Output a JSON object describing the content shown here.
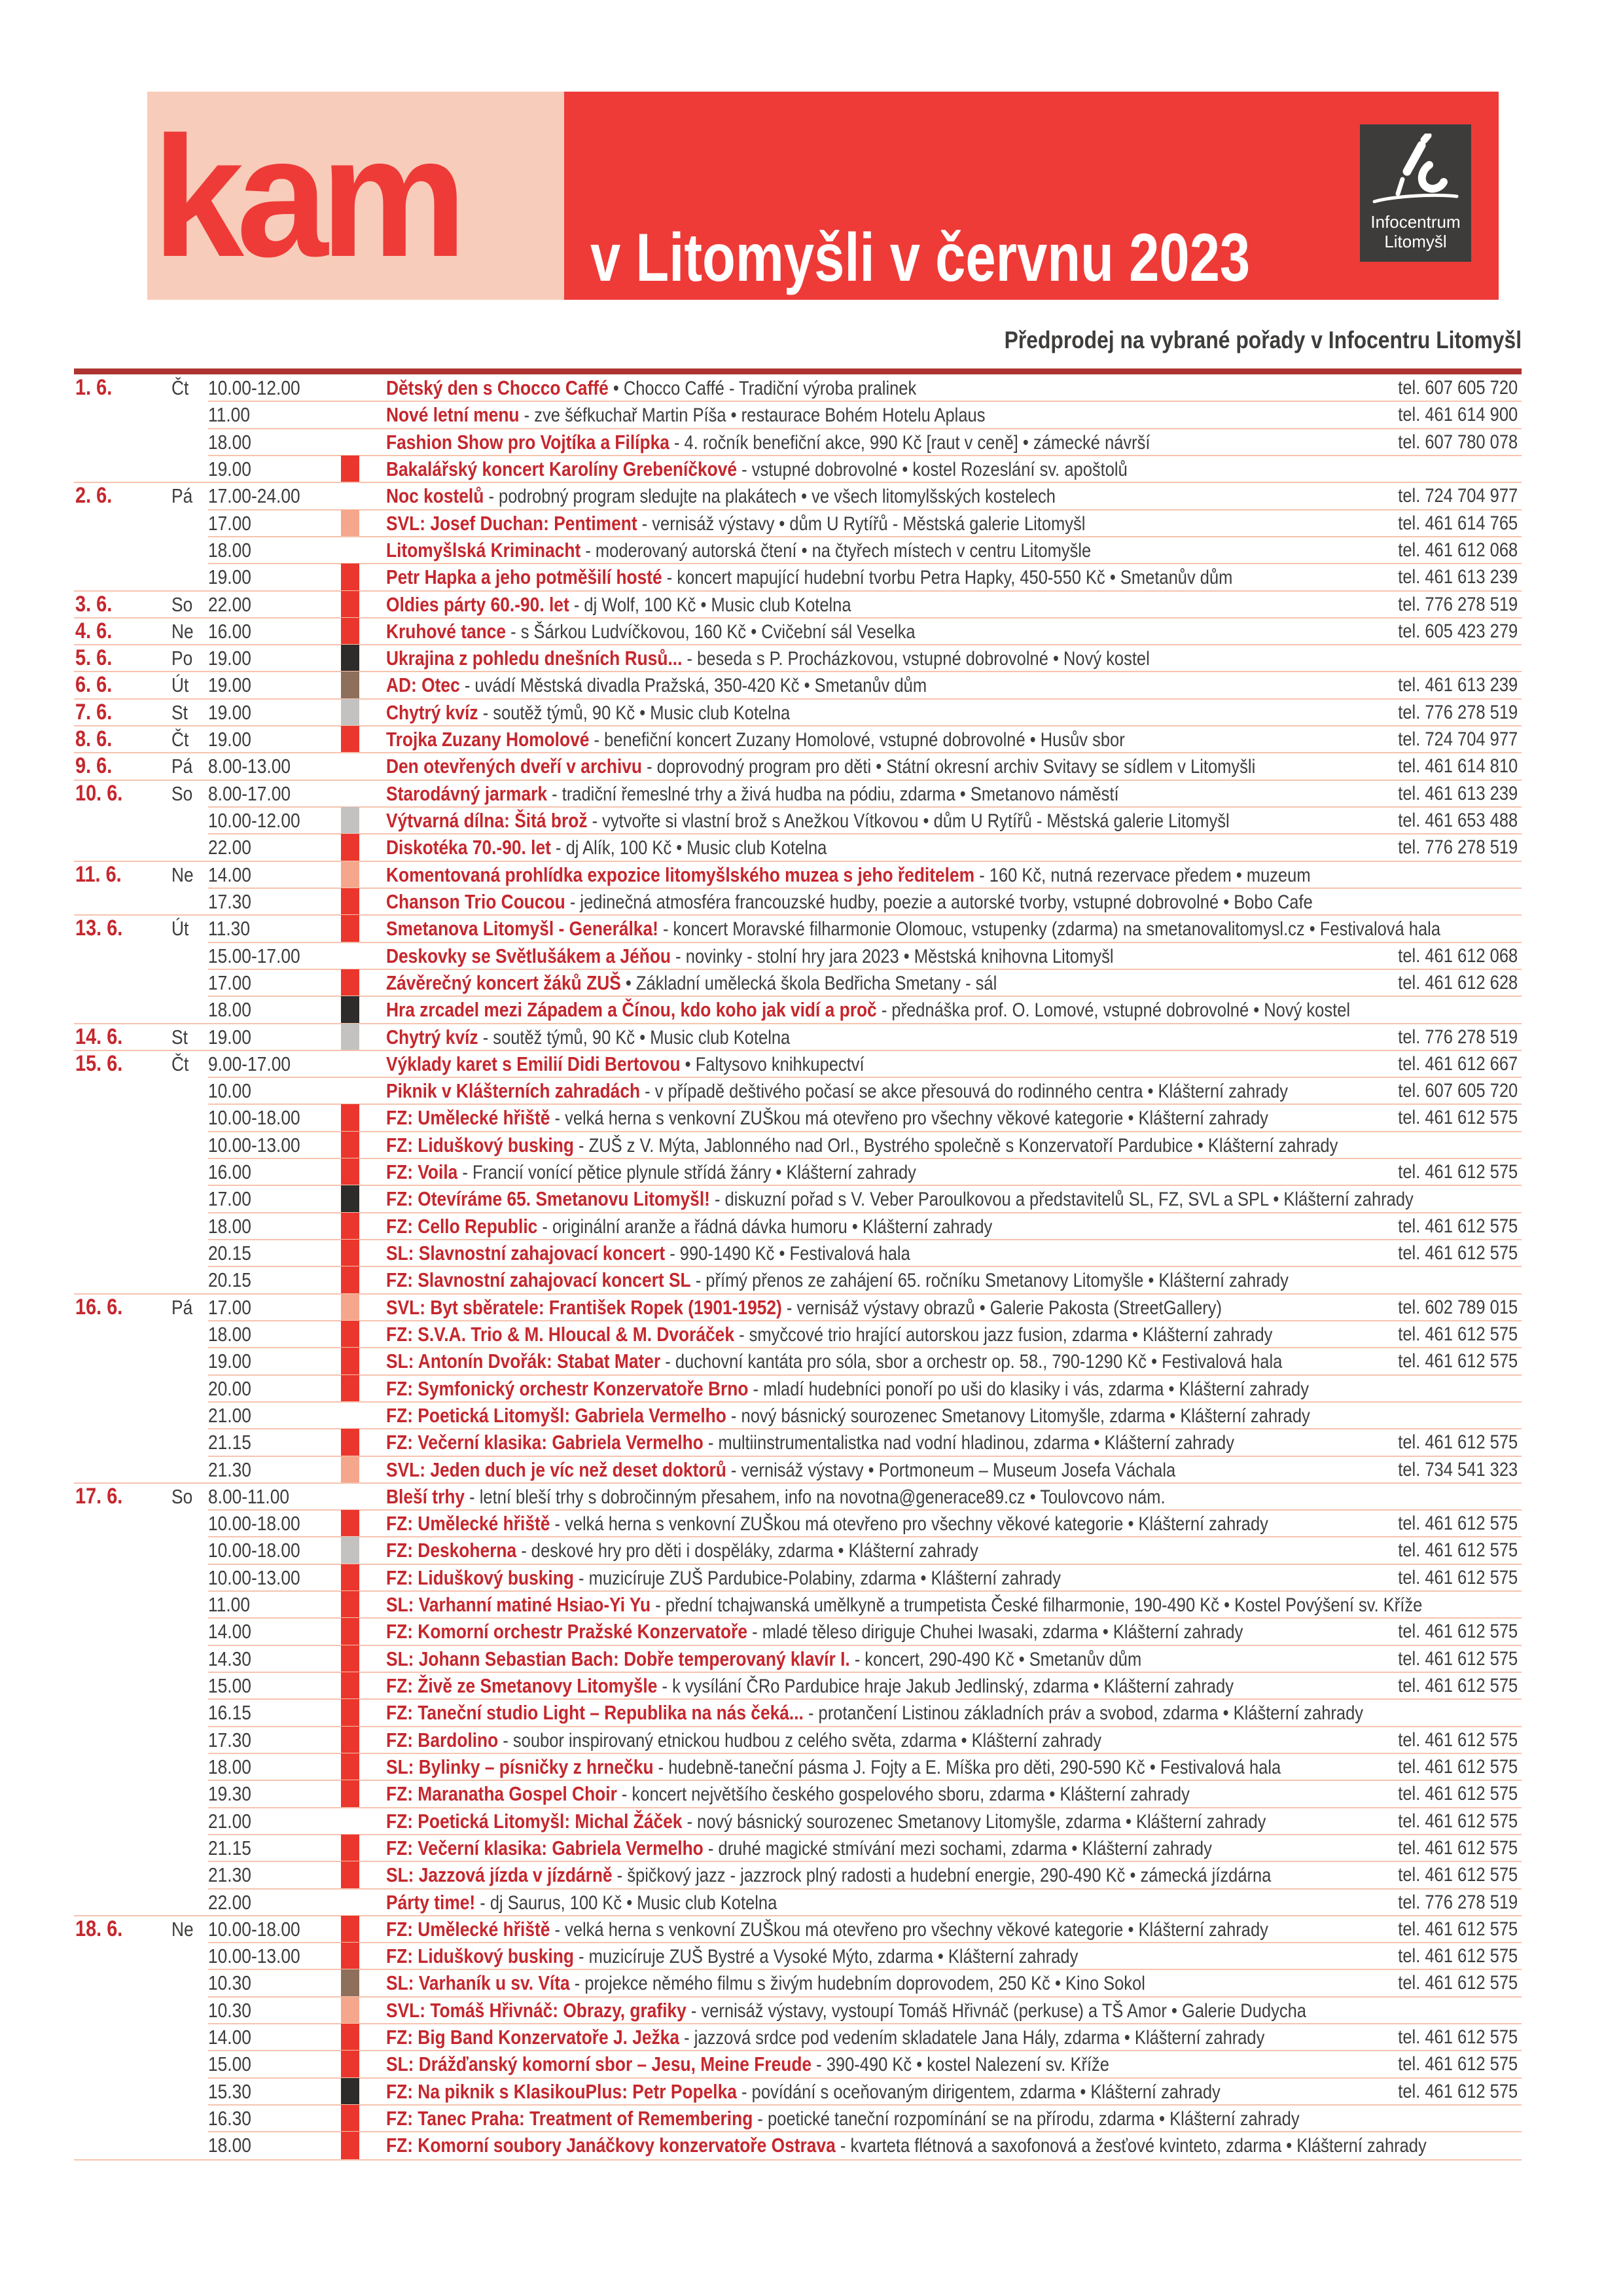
{
  "header": {
    "logo": "kam",
    "title": "v Litomyšli v červnu 2023",
    "badge": {
      "line1": "Infocentrum",
      "line2": "Litomyšl"
    }
  },
  "presale_note": "Předprodej na vybrané pořady v Infocentru Litomyšl",
  "colors": {
    "brand_red": "#ee3b38",
    "panel_pink": "#f8ccba",
    "bar_dark_red": "#ad3430",
    "title_red": "#c5272d",
    "text_dark": "#3e3d3c",
    "separator": "#f6c3ae",
    "badge_bg": "#3e3c3b",
    "marker_red": "#eb362d",
    "marker_salmon": "#f4a78c",
    "marker_black": "#2e2c2b",
    "marker_brown": "#8d6f5c",
    "marker_gray": "#c3c2c1"
  },
  "events": [
    {
      "date": "1. 6.",
      "day": "Čt",
      "rows": [
        {
          "time": "10.00-12.00",
          "marker": null,
          "title": "Dětský den s Chocco Caffé",
          "desc": "• Chocco Caffé - Tradiční výroba pralinek",
          "phone": "tel. 607 605 720"
        },
        {
          "time": "11.00",
          "marker": null,
          "title": "Nové letní menu",
          "desc": "- zve šéfkuchař Martin Píša • restaurace Bohém Hotelu Aplaus",
          "phone": "tel. 461 614 900"
        },
        {
          "time": "18.00",
          "marker": null,
          "title": "Fashion Show pro Vojtíka a Filípka",
          "desc": "- 4. ročník benefiční akce, 990 Kč [raut v ceně] • zámecké návrší",
          "phone": "tel. 607 780 078"
        },
        {
          "time": "19.00",
          "marker": "red",
          "title": "Bakalářský koncert Karolíny Grebeníčkové",
          "desc": "- vstupné dobrovolné • kostel Rozeslání sv. apoštolů",
          "phone": null
        }
      ]
    },
    {
      "date": "2. 6.",
      "day": "Pá",
      "rows": [
        {
          "time": "17.00-24.00",
          "marker": null,
          "title": "Noc kostelů",
          "desc": "- podrobný program sledujte na plakátech • ve všech litomylšských kostelech",
          "phone": "tel. 724 704 977"
        },
        {
          "time": "17.00",
          "marker": "salmon",
          "title": "SVL: Josef Duchan: Pentiment",
          "desc": "- vernisáž výstavy • dům U Rytířů - Městská galerie Litomyšl",
          "phone": "tel. 461 614 765"
        },
        {
          "time": "18.00",
          "marker": null,
          "title": "Litomyšlská Kriminacht",
          "desc": "- moderovaný autorská čtení • na čtyřech místech v centru Litomyšle",
          "phone": "tel. 461 612 068"
        },
        {
          "time": "19.00",
          "marker": "red",
          "title": "Petr Hapka a jeho potměšilí hosté",
          "desc": "- koncert mapující hudební tvorbu Petra Hapky, 450-550 Kč • Smetanův dům",
          "phone": "tel. 461 613 239"
        }
      ]
    },
    {
      "date": "3. 6.",
      "day": "So",
      "rows": [
        {
          "time": "22.00",
          "marker": "red",
          "title": "Oldies párty 60.-90. let",
          "desc": "- dj Wolf, 100 Kč • Music club Kotelna",
          "phone": "tel. 776 278 519"
        }
      ]
    },
    {
      "date": "4. 6.",
      "day": "Ne",
      "rows": [
        {
          "time": "16.00",
          "marker": "red",
          "title": "Kruhové tance",
          "desc": "- s Šárkou Ludvíčkovou, 160 Kč • Cvičební sál Veselka",
          "phone": "tel. 605 423 279"
        }
      ]
    },
    {
      "date": "5. 6.",
      "day": "Po",
      "rows": [
        {
          "time": "19.00",
          "marker": "black",
          "title": "Ukrajina z pohledu dnešních Rusů...",
          "desc": "- beseda s P. Procházkovou, vstupné dobrovolné • Nový kostel",
          "phone": null
        }
      ]
    },
    {
      "date": "6. 6.",
      "day": "Út",
      "rows": [
        {
          "time": "19.00",
          "marker": "brown",
          "title": "AD: Otec",
          "desc": "- uvádí Městská divadla Pražská, 350-420 Kč • Smetanův dům",
          "phone": "tel. 461 613 239"
        }
      ]
    },
    {
      "date": "7. 6.",
      "day": "St",
      "rows": [
        {
          "time": "19.00",
          "marker": "gray",
          "title": "Chytrý kvíz",
          "desc": "- soutěž týmů, 90 Kč • Music club Kotelna",
          "phone": "tel. 776 278 519"
        }
      ]
    },
    {
      "date": "8. 6.",
      "day": "Čt",
      "rows": [
        {
          "time": "19.00",
          "marker": "red",
          "title": "Trojka Zuzany Homolové",
          "desc": "- benefiční koncert Zuzany Homolové, vstupné dobrovolné • Husův sbor",
          "phone": "tel. 724 704 977"
        }
      ]
    },
    {
      "date": "9. 6.",
      "day": "Pá",
      "rows": [
        {
          "time": "8.00-13.00",
          "marker": null,
          "title": "Den otevřených dveří v archivu",
          "desc": "- doprovodný program pro děti • Státní okresní archiv Svitavy se sídlem v Litomyšli",
          "phone": "tel. 461 614 810"
        }
      ]
    },
    {
      "date": "10. 6.",
      "day": "So",
      "rows": [
        {
          "time": "8.00-17.00",
          "marker": null,
          "title": "Starodávný jarmark",
          "desc": "- tradiční řemeslné trhy a živá hudba na pódiu, zdarma • Smetanovo náměstí",
          "phone": "tel. 461 613 239"
        },
        {
          "time": "10.00-12.00",
          "marker": "gray",
          "title": "Výtvarná dílna: Šitá brož",
          "desc": "- vytvořte si vlastní brož s Anežkou Vítkovou • dům U Rytířů - Městská galerie Litomyšl",
          "phone": "tel. 461 653 488"
        },
        {
          "time": "22.00",
          "marker": "red",
          "title": "Diskotéka 70.-90. let",
          "desc": "- dj Alík, 100 Kč • Music club Kotelna",
          "phone": "tel. 776 278 519"
        }
      ]
    },
    {
      "date": "11. 6.",
      "day": "Ne",
      "rows": [
        {
          "time": "14.00",
          "marker": "salmon",
          "title": "Komentovaná prohlídka expozice litomyšlského muzea s jeho ředitelem",
          "desc": "- 160 Kč, nutná rezervace předem • muzeum",
          "phone": null
        },
        {
          "time": "17.30",
          "marker": "red",
          "title": "Chanson Trio Coucou",
          "desc": "- jedinečná atmosféra francouzské hudby, poezie a autorské tvorby, vstupné dobrovolné • Bobo Cafe",
          "phone": null
        }
      ]
    },
    {
      "date": "13. 6.",
      "day": "Út",
      "rows": [
        {
          "time": "11.30",
          "marker": "red",
          "title": "Smetanova Litomyšl - Generálka!",
          "desc": "- koncert Moravské filharmonie Olomouc, vstupenky (zdarma) na smetanovalitomysl.cz • Festivalová hala",
          "phone": null
        },
        {
          "time": "15.00-17.00",
          "marker": null,
          "title": "Deskovky se Světlušákem a Jéňou",
          "desc": "- novinky - stolní hry jara 2023 • Městská knihovna Litomyšl",
          "phone": "tel. 461 612 068"
        },
        {
          "time": "17.00",
          "marker": "red",
          "title": "Závěrečný koncert žáků ZUŠ",
          "desc": "• Základní umělecká škola Bedřicha Smetany - sál",
          "phone": "tel. 461 612 628"
        },
        {
          "time": "18.00",
          "marker": "black",
          "title": "Hra zrcadel mezi Západem a Čínou, kdo koho jak vidí a proč",
          "desc": "- přednáška prof. O. Lomové, vstupné dobrovolné • Nový kostel",
          "phone": null
        }
      ]
    },
    {
      "date": "14. 6.",
      "day": "St",
      "rows": [
        {
          "time": "19.00",
          "marker": "gray",
          "title": "Chytrý kvíz",
          "desc": "- soutěž týmů, 90 Kč • Music club Kotelna",
          "phone": "tel. 776 278 519"
        }
      ]
    },
    {
      "date": "15. 6.",
      "day": "Čt",
      "rows": [
        {
          "time": "9.00-17.00",
          "marker": null,
          "title": "Výklady karet s Emilií Didi Bertovou",
          "desc": "• Faltysovo knihkupectví",
          "phone": "tel. 461 612 667"
        },
        {
          "time": "10.00",
          "marker": null,
          "title": "Piknik v Klášterních zahradách",
          "desc": "- v případě deštivého počasí se akce přesouvá do rodinného centra • Klášterní zahrady",
          "phone": "tel. 607 605 720"
        },
        {
          "time": "10.00-18.00",
          "marker": "red",
          "title": "FZ: Umělecké hřiště",
          "desc": "- velká herna s venkovní ZUŠkou má otevřeno pro všechny věkové kategorie • Klášterní zahrady",
          "phone": "tel. 461 612 575"
        },
        {
          "time": "10.00-13.00",
          "marker": "red",
          "title": "FZ: Liduškový busking",
          "desc": "- ZUŠ z V. Mýta, Jablonného nad Orl., Bystrého společně s Konzervatoří Pardubice • Klášterní zahrady",
          "phone": null
        },
        {
          "time": "16.00",
          "marker": "red",
          "title": "FZ: Voila",
          "desc": "- Francií vonící pětice plynule střídá žánry • Klášterní zahrady",
          "phone": "tel. 461 612 575"
        },
        {
          "time": "17.00",
          "marker": "black",
          "title": "FZ: Otevíráme 65. Smetanovu Litomyšl!",
          "desc": "- diskuzní pořad s V. Veber Paroulkovou a představitelů SL, FZ, SVL a SPL • Klášterní zahrady",
          "phone": null
        },
        {
          "time": "18.00",
          "marker": "red",
          "title": "FZ: Cello Republic",
          "desc": "- originální aranže a řádná dávka humoru • Klášterní zahrady",
          "phone": "tel. 461 612 575"
        },
        {
          "time": "20.15",
          "marker": "red",
          "title": "SL: Slavnostní zahajovací koncert",
          "desc": "- 990-1490 Kč • Festivalová hala",
          "phone": "tel. 461 612 575"
        },
        {
          "time": "20.15",
          "marker": "red",
          "title": "FZ: Slavnostní zahajovací koncert SL",
          "desc": "- přímý přenos ze zahájení 65. ročníku Smetanovy Litomyšle • Klášterní zahrady",
          "phone": null
        }
      ]
    },
    {
      "date": "16. 6.",
      "day": "Pá",
      "rows": [
        {
          "time": "17.00",
          "marker": "salmon",
          "title": "SVL: Byt sběratele: František Ropek (1901-1952)",
          "desc": "- vernisáž výstavy obrazů • Galerie Pakosta (StreetGallery)",
          "phone": "tel. 602 789 015"
        },
        {
          "time": "18.00",
          "marker": "red",
          "title": "FZ: S.V.A. Trio & M. Hloucal & M. Dvoráček",
          "desc": "- smyčcové trio hrající autorskou jazz fusion, zdarma • Klášterní zahrady",
          "phone": "tel. 461 612 575"
        },
        {
          "time": "19.00",
          "marker": "red",
          "title": "SL: Antonín Dvořák: Stabat Mater",
          "desc": "- duchovní kantáta pro sóla, sbor a orchestr op. 58., 790-1290 Kč • Festivalová hala",
          "phone": "tel. 461 612 575"
        },
        {
          "time": "20.00",
          "marker": "red",
          "title": "FZ: Symfonický orchestr Konzervatoře Brno",
          "desc": "- mladí hudebníci ponoří po uši do klasiky i vás, zdarma • Klášterní zahrady",
          "phone": null
        },
        {
          "time": "21.00",
          "marker": null,
          "title": "FZ: Poetická Litomyšl: Gabriela Vermelho",
          "desc": "- nový básnický sourozenec Smetanovy Litomyšle, zdarma • Klášterní zahrady",
          "phone": null
        },
        {
          "time": "21.15",
          "marker": "red",
          "title": "FZ: Večerní klasika: Gabriela Vermelho",
          "desc": "- multiinstrumentalistka nad vodní hladinou, zdarma • Klášterní zahrady",
          "phone": "tel. 461 612 575"
        },
        {
          "time": "21.30",
          "marker": "salmon",
          "title": "SVL: Jeden duch je víc než deset doktorů",
          "desc": "- vernisáž výstavy • Portmoneum – Museum Josefa Váchala",
          "phone": "tel. 734 541 323"
        }
      ]
    },
    {
      "date": "17. 6.",
      "day": "So",
      "rows": [
        {
          "time": "8.00-11.00",
          "marker": null,
          "title": "Bleší trhy",
          "desc": "- letní bleší trhy s dobročinným přesahem, info na novotna@generace89.cz • Toulovcovo nám.",
          "phone": null
        },
        {
          "time": "10.00-18.00",
          "marker": "red",
          "title": "FZ: Umělecké hřiště",
          "desc": "- velká herna s venkovní ZUŠkou má otevřeno pro všechny věkové kategorie • Klášterní zahrady",
          "phone": "tel. 461 612 575"
        },
        {
          "time": "10.00-18.00",
          "marker": "gray",
          "title": "FZ: Deskoherna",
          "desc": "- deskové hry pro děti i dospěláky, zdarma • Klášterní zahrady",
          "phone": "tel. 461 612 575"
        },
        {
          "time": "10.00-13.00",
          "marker": "red",
          "title": "FZ: Liduškový busking",
          "desc": "- muzicíruje ZUŠ Pardubice-Polabiny, zdarma • Klášterní zahrady",
          "phone": "tel. 461 612 575"
        },
        {
          "time": "11.00",
          "marker": "red",
          "title": "SL: Varhanní matiné Hsiao-Yi Yu",
          "desc": "- přední tchajwanská umělkyně a trumpetista České filharmonie, 190-490 Kč • Kostel Povýšení sv. Kříže",
          "phone": null
        },
        {
          "time": "14.00",
          "marker": "red",
          "title": "FZ: Komorní orchestr Pražské Konzervatoře",
          "desc": "- mladé těleso diriguje Chuhei Iwasaki, zdarma • Klášterní zahrady",
          "phone": "tel. 461 612 575"
        },
        {
          "time": "14.30",
          "marker": "red",
          "title": "SL: Johann Sebastian Bach: Dobře temperovaný klavír I.",
          "desc": "- koncert, 290-490 Kč • Smetanův dům",
          "phone": "tel. 461 612 575"
        },
        {
          "time": "15.00",
          "marker": "red",
          "title": "FZ: Živě ze Smetanovy Litomyšle",
          "desc": "- k vysílání ČRo Pardubice hraje Jakub Jedlinský, zdarma • Klášterní zahrady",
          "phone": "tel. 461 612 575"
        },
        {
          "time": "16.15",
          "marker": "red",
          "title": "FZ: Taneční studio Light – Republika na nás čeká...",
          "desc": "- protančení Listinou základních práv a svobod, zdarma • Klášterní zahrady",
          "phone": null
        },
        {
          "time": "17.30",
          "marker": "red",
          "title": "FZ: Bardolino",
          "desc": "- soubor inspirovaný etnickou hudbou z celého světa, zdarma • Klášterní zahrady",
          "phone": "tel. 461 612 575"
        },
        {
          "time": "18.00",
          "marker": "red",
          "title": "SL: Bylinky – písničky z hrnečku",
          "desc": "- hudebně-taneční pásma J. Fojty a E. Míška pro děti, 290-590 Kč • Festivalová hala",
          "phone": "tel. 461 612 575"
        },
        {
          "time": "19.30",
          "marker": "red",
          "title": "FZ: Maranatha Gospel Choir",
          "desc": "- koncert největšího českého gospelového sboru, zdarma • Klášterní zahrady",
          "phone": "tel. 461 612 575"
        },
        {
          "time": "21.00",
          "marker": null,
          "title": "FZ: Poetická Litomyšl: Michal Žáček",
          "desc": "- nový básnický sourozenec Smetanovy Litomyšle, zdarma • Klášterní zahrady",
          "phone": "tel. 461 612 575"
        },
        {
          "time": "21.15",
          "marker": "red",
          "title": "FZ: Večerní klasika: Gabriela Vermelho",
          "desc": "- druhé magické stmívání mezi sochami, zdarma • Klášterní zahrady",
          "phone": "tel. 461 612 575"
        },
        {
          "time": "21.30",
          "marker": "red",
          "title": "SL: Jazzová jízda v jízdárně",
          "desc": "- špičkový jazz - jazzrock plný radosti a hudební energie, 290-490 Kč • zámecká jízdárna",
          "phone": "tel. 461 612 575"
        },
        {
          "time": "22.00",
          "marker": null,
          "title": "Párty time!",
          "desc": "- dj Saurus, 100 Kč • Music club Kotelna",
          "phone": "tel. 776 278 519"
        }
      ]
    },
    {
      "date": "18. 6.",
      "day": "Ne",
      "rows": [
        {
          "time": "10.00-18.00",
          "marker": "red",
          "title": "FZ: Umělecké hřiště",
          "desc": "- velká herna s venkovní ZUŠkou má otevřeno pro všechny věkové kategorie • Klášterní zahrady",
          "phone": "tel. 461 612 575"
        },
        {
          "time": "10.00-13.00",
          "marker": "red",
          "title": "FZ: Liduškový busking",
          "desc": "- muzicíruje ZUŠ Bystré a Vysoké Mýto, zdarma • Klášterní zahrady",
          "phone": "tel. 461 612 575"
        },
        {
          "time": "10.30",
          "marker": "brown",
          "title": "SL: Varhaník u sv. Víta",
          "desc": "- projekce němého filmu s živým hudebním doprovodem, 250 Kč • Kino Sokol",
          "phone": "tel. 461 612 575"
        },
        {
          "time": "10.30",
          "marker": "salmon",
          "title": "SVL: Tomáš Hřivnáč: Obrazy, grafiky",
          "desc": "- vernisáž výstavy, vystoupí Tomáš Hřivnáč (perkuse) a TŠ Amor • Galerie Dudycha",
          "phone": null
        },
        {
          "time": "14.00",
          "marker": "red",
          "title": "FZ: Big Band Konzervatoře J. Ježka",
          "desc": "- jazzová srdce pod vedením skladatele Jana Hály, zdarma • Klášterní zahrady",
          "phone": "tel. 461 612 575"
        },
        {
          "time": "15.00",
          "marker": "red",
          "title": "SL: Drážďanský komorní sbor – Jesu, Meine Freude",
          "desc": "- 390-490 Kč • kostel Nalezení sv. Kříže",
          "phone": "tel. 461 612 575"
        },
        {
          "time": "15.30",
          "marker": "black",
          "title": "FZ: Na piknik s KlasikouPlus: Petr Popelka",
          "desc": "- povídání s oceňovaným dirigentem, zdarma • Klášterní zahrady",
          "phone": "tel. 461 612 575"
        },
        {
          "time": "16.30",
          "marker": "red",
          "title": "FZ: Tanec Praha: Treatment of Remembering",
          "desc": "- poetické taneční rozpomínání se na přírodu, zdarma • Klášterní zahrady",
          "phone": null
        },
        {
          "time": "18.00",
          "marker": "red",
          "title": "FZ: Komorní soubory Janáčkovy konzervatoře Ostrava",
          "desc": "- kvarteta flétnová a saxofonová a žesťové kvinteto, zdarma • Klášterní zahrady",
          "phone": null
        }
      ]
    }
  ]
}
